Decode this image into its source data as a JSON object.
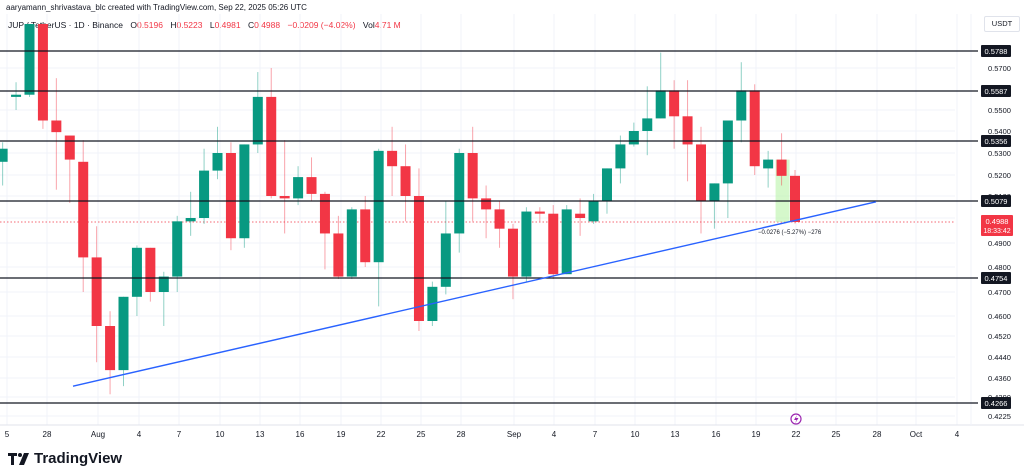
{
  "header": {
    "credit": "aaryamann_shrivastava_blc created with TradingView.com, Sep 22, 2025 05:26 UTC",
    "symbol": "JUP / TetherUS · 1D · Binance",
    "ohlc": {
      "o_label": "O",
      "o": "0.5196",
      "h_label": "H",
      "h": "0.5223",
      "l_label": "L",
      "l": "0.4981",
      "c_label": "C",
      "c": "0.4988",
      "change": "−0.0209 (−4.02%)",
      "vol_label": "Vol",
      "vol": "4.71 M"
    }
  },
  "axis": {
    "currency": "USDT"
  },
  "colors": {
    "up": "#089981",
    "down": "#f23645",
    "trendline": "#2962ff",
    "level": "#131722",
    "grid": "#f0f3fa",
    "measure": "#b2f2a0"
  },
  "footer": {
    "brand": "TradingView"
  },
  "measure_label": "−0.0276 (−5.27%) −276",
  "chart_data": {
    "type": "candlestick",
    "title": "JUP / TetherUS · 1D · Binance",
    "xlabel": "",
    "ylabel": "USDT",
    "ylim": [
      0.4225,
      0.583
    ],
    "grid": true,
    "y_ticks": [
      "0.5700",
      "0.5500",
      "0.5400",
      "0.5300",
      "0.5200",
      "0.5100",
      "0.5000",
      "0.4900",
      "0.4800",
      "0.4700",
      "0.4600",
      "0.4520",
      "0.4440",
      "0.4360",
      "0.4290",
      "0.4225"
    ],
    "x_ticks": [
      "5",
      "28",
      "Aug",
      "4",
      "7",
      "10",
      "13",
      "16",
      "19",
      "22",
      "25",
      "28",
      "Sep",
      "4",
      "7",
      "10",
      "13",
      "16",
      "19",
      "22",
      "25",
      "28",
      "Oct",
      "4"
    ],
    "horizontal_levels": [
      "0.5788",
      "0.5587",
      "0.5356",
      "0.5079",
      "0.4754",
      "0.4266"
    ],
    "current_price": {
      "value": "0.4988",
      "countdown": "18:33:42"
    },
    "trendline": {
      "from": {
        "date": "Jul 30",
        "price": 0.433
      },
      "to": {
        "date": "Sep 28",
        "price": 0.5075
      }
    },
    "candles": [
      {
        "d": "Jul 25",
        "o": 0.526,
        "h": 0.535,
        "l": 0.515,
        "c": 0.532
      },
      {
        "d": "Jul 26",
        "o": 0.556,
        "h": 0.563,
        "l": 0.55,
        "c": 0.557
      },
      {
        "d": "Jul 27",
        "o": 0.557,
        "h": 0.59,
        "l": 0.556,
        "c": 0.59
      },
      {
        "d": "Jul 28",
        "o": 0.59,
        "h": 0.59,
        "l": 0.541,
        "c": 0.545
      },
      {
        "d": "Jul 29",
        "o": 0.545,
        "h": 0.565,
        "l": 0.513,
        "c": 0.5395
      },
      {
        "d": "Jul 30",
        "o": 0.538,
        "h": 0.538,
        "l": 0.507,
        "c": 0.527
      },
      {
        "d": "Jul 31",
        "o": 0.526,
        "h": 0.536,
        "l": 0.47,
        "c": 0.484
      },
      {
        "d": "Aug 1",
        "o": 0.484,
        "h": 0.497,
        "l": 0.442,
        "c": 0.456
      },
      {
        "d": "Aug 2",
        "o": 0.456,
        "h": 0.462,
        "l": 0.43,
        "c": 0.439
      },
      {
        "d": "Aug 3",
        "o": 0.439,
        "h": 0.468,
        "l": 0.433,
        "c": 0.468
      },
      {
        "d": "Aug 4",
        "o": 0.468,
        "h": 0.489,
        "l": 0.46,
        "c": 0.488
      },
      {
        "d": "Aug 5",
        "o": 0.488,
        "h": 0.488,
        "l": 0.466,
        "c": 0.47
      },
      {
        "d": "Aug 6",
        "o": 0.47,
        "h": 0.478,
        "l": 0.456,
        "c": 0.476
      },
      {
        "d": "Aug 7",
        "o": 0.476,
        "h": 0.501,
        "l": 0.47,
        "c": 0.499
      },
      {
        "d": "Aug 8",
        "o": 0.499,
        "h": 0.512,
        "l": 0.493,
        "c": 0.5
      },
      {
        "d": "Aug 9",
        "o": 0.5,
        "h": 0.532,
        "l": 0.498,
        "c": 0.522
      },
      {
        "d": "Aug 10",
        "o": 0.522,
        "h": 0.542,
        "l": 0.518,
        "c": 0.53
      },
      {
        "d": "Aug 11",
        "o": 0.53,
        "h": 0.535,
        "l": 0.487,
        "c": 0.492
      },
      {
        "d": "Aug 12",
        "o": 0.492,
        "h": 0.534,
        "l": 0.488,
        "c": 0.534
      },
      {
        "d": "Aug 13",
        "o": 0.534,
        "h": 0.568,
        "l": 0.53,
        "c": 0.556
      },
      {
        "d": "Aug 14",
        "o": 0.556,
        "h": 0.57,
        "l": 0.509,
        "c": 0.51
      },
      {
        "d": "Aug 15",
        "o": 0.51,
        "h": 0.536,
        "l": 0.494,
        "c": 0.509
      },
      {
        "d": "Aug 16",
        "o": 0.509,
        "h": 0.524,
        "l": 0.506,
        "c": 0.519
      },
      {
        "d": "Aug 17",
        "o": 0.519,
        "h": 0.528,
        "l": 0.508,
        "c": 0.511
      },
      {
        "d": "Aug 18",
        "o": 0.511,
        "h": 0.512,
        "l": 0.479,
        "c": 0.494
      },
      {
        "d": "Aug 19",
        "o": 0.494,
        "h": 0.501,
        "l": 0.475,
        "c": 0.476
      },
      {
        "d": "Aug 20",
        "o": 0.476,
        "h": 0.505,
        "l": 0.475,
        "c": 0.504
      },
      {
        "d": "Aug 21",
        "o": 0.504,
        "h": 0.51,
        "l": 0.48,
        "c": 0.482
      },
      {
        "d": "Aug 22",
        "o": 0.482,
        "h": 0.532,
        "l": 0.464,
        "c": 0.531
      },
      {
        "d": "Aug 23",
        "o": 0.531,
        "h": 0.542,
        "l": 0.51,
        "c": 0.524
      },
      {
        "d": "Aug 24",
        "o": 0.524,
        "h": 0.534,
        "l": 0.499,
        "c": 0.51
      },
      {
        "d": "Aug 25",
        "o": 0.51,
        "h": 0.523,
        "l": 0.454,
        "c": 0.458
      },
      {
        "d": "Aug 26",
        "o": 0.458,
        "h": 0.474,
        "l": 0.456,
        "c": 0.472
      },
      {
        "d": "Aug 27",
        "o": 0.472,
        "h": 0.508,
        "l": 0.469,
        "c": 0.494
      },
      {
        "d": "Aug 28",
        "o": 0.494,
        "h": 0.532,
        "l": 0.486,
        "c": 0.53
      },
      {
        "d": "Aug 29",
        "o": 0.53,
        "h": 0.542,
        "l": 0.499,
        "c": 0.509
      },
      {
        "d": "Aug 30",
        "o": 0.509,
        "h": 0.515,
        "l": 0.492,
        "c": 0.504
      },
      {
        "d": "Aug 31",
        "o": 0.504,
        "h": 0.508,
        "l": 0.488,
        "c": 0.496
      },
      {
        "d": "Sep 1",
        "o": 0.496,
        "h": 0.498,
        "l": 0.467,
        "c": 0.476
      },
      {
        "d": "Sep 2",
        "o": 0.476,
        "h": 0.505,
        "l": 0.474,
        "c": 0.503
      },
      {
        "d": "Sep 3",
        "o": 0.503,
        "h": 0.505,
        "l": 0.499,
        "c": 0.502
      },
      {
        "d": "Sep 4",
        "o": 0.502,
        "h": 0.506,
        "l": 0.475,
        "c": 0.477
      },
      {
        "d": "Sep 5",
        "o": 0.477,
        "h": 0.506,
        "l": 0.477,
        "c": 0.504
      },
      {
        "d": "Sep 6",
        "o": 0.502,
        "h": 0.509,
        "l": 0.493,
        "c": 0.5
      },
      {
        "d": "Sep 7",
        "o": 0.499,
        "h": 0.511,
        "l": 0.498,
        "c": 0.508
      },
      {
        "d": "Sep 8",
        "o": 0.508,
        "h": 0.523,
        "l": 0.502,
        "c": 0.523
      },
      {
        "d": "Sep 9",
        "o": 0.523,
        "h": 0.538,
        "l": 0.516,
        "c": 0.534
      },
      {
        "d": "Sep 10",
        "o": 0.534,
        "h": 0.544,
        "l": 0.533,
        "c": 0.54
      },
      {
        "d": "Sep 11",
        "o": 0.54,
        "h": 0.561,
        "l": 0.529,
        "c": 0.546
      },
      {
        "d": "Sep 12",
        "o": 0.546,
        "h": 0.578,
        "l": 0.546,
        "c": 0.559
      },
      {
        "d": "Sep 13",
        "o": 0.559,
        "h": 0.564,
        "l": 0.532,
        "c": 0.547
      },
      {
        "d": "Sep 14",
        "o": 0.547,
        "h": 0.564,
        "l": 0.517,
        "c": 0.534
      },
      {
        "d": "Sep 15",
        "o": 0.534,
        "h": 0.542,
        "l": 0.494,
        "c": 0.508
      },
      {
        "d": "Sep 16",
        "o": 0.508,
        "h": 0.516,
        "l": 0.496,
        "c": 0.516
      },
      {
        "d": "Sep 17",
        "o": 0.516,
        "h": 0.545,
        "l": 0.5,
        "c": 0.545
      },
      {
        "d": "Sep 18",
        "o": 0.545,
        "h": 0.573,
        "l": 0.535,
        "c": 0.559
      },
      {
        "d": "Sep 19",
        "o": 0.559,
        "h": 0.562,
        "l": 0.52,
        "c": 0.524
      },
      {
        "d": "Sep 20",
        "o": 0.523,
        "h": 0.531,
        "l": 0.514,
        "c": 0.527
      },
      {
        "d": "Sep 21",
        "o": 0.527,
        "h": 0.539,
        "l": 0.515,
        "c": 0.5196
      },
      {
        "d": "Sep 22",
        "o": 0.5196,
        "h": 0.5223,
        "l": 0.4981,
        "c": 0.4988
      }
    ]
  }
}
